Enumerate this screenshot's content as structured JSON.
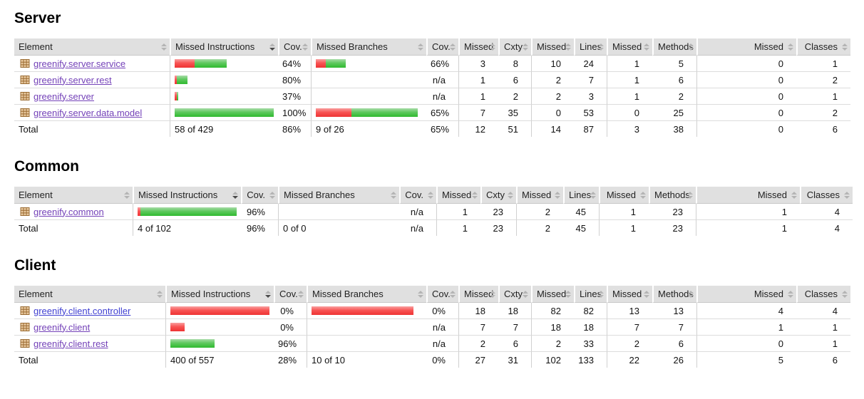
{
  "sort": {
    "column": "Missed Instructions",
    "direction": "desc"
  },
  "colors": {
    "bar_red": "#f85555",
    "bar_green": "#5fc85f",
    "header_bg": "#e0e0e0",
    "link_visited": "#7442b8",
    "link_new": "#3f3fd1",
    "package_icon_brown": "#9a6b32",
    "row_border": "#dcdcdc"
  },
  "table_columns": {
    "element": "Element",
    "missed_instructions": "Missed Instructions",
    "cov": "Cov.",
    "missed_branches": "Missed Branches",
    "missed": "Missed",
    "cxty": "Cxty",
    "lines": "Lines",
    "methods": "Methods",
    "classes": "Classes"
  },
  "sections": [
    {
      "title": "Server",
      "rows": [
        {
          "name": "greenify.server.service",
          "bar_instr_red": 28,
          "bar_instr_green": 45,
          "instr_cov": "64%",
          "bar_branch_red": 14,
          "bar_branch_green": 28,
          "branch_cov": "66%",
          "missed_cxty": "3",
          "cxty": "8",
          "missed_lines": "10",
          "lines": "24",
          "missed_methods": "1",
          "methods": "5",
          "missed_classes": "0",
          "classes": "1"
        },
        {
          "name": "greenify.server.rest",
          "bar_instr_red": 3,
          "bar_instr_green": 15,
          "instr_cov": "80%",
          "bar_branch_red": 0,
          "bar_branch_green": 0,
          "branch_cov": "n/a",
          "missed_cxty": "1",
          "cxty": "6",
          "missed_lines": "2",
          "lines": "7",
          "missed_methods": "1",
          "methods": "6",
          "missed_classes": "0",
          "classes": "2"
        },
        {
          "name": "greenify.server",
          "bar_instr_red": 3,
          "bar_instr_green": 2,
          "instr_cov": "37%",
          "bar_branch_red": 0,
          "bar_branch_green": 0,
          "branch_cov": "n/a",
          "missed_cxty": "1",
          "cxty": "2",
          "missed_lines": "2",
          "lines": "3",
          "missed_methods": "1",
          "methods": "2",
          "missed_classes": "0",
          "classes": "1"
        },
        {
          "name": "greenify.server.data.model",
          "bar_instr_red": 0,
          "bar_instr_green": 145,
          "instr_cov": "100%",
          "bar_branch_red": 50,
          "bar_branch_green": 93,
          "branch_cov": "65%",
          "missed_cxty": "7",
          "cxty": "35",
          "missed_lines": "0",
          "lines": "53",
          "missed_methods": "0",
          "methods": "25",
          "missed_classes": "0",
          "classes": "2"
        }
      ],
      "total": {
        "label": "Total",
        "instructions": "58 of 429",
        "instr_cov": "86%",
        "branches": "9 of 26",
        "branch_cov": "65%",
        "missed_cxty": "12",
        "cxty": "51",
        "missed_lines": "14",
        "lines": "87",
        "missed_methods": "3",
        "methods": "38",
        "missed_classes": "0",
        "classes": "6"
      }
    },
    {
      "title": "Common",
      "rows": [
        {
          "name": "greenify.common",
          "bar_instr_red": 4,
          "bar_instr_green": 141,
          "instr_cov": "96%",
          "bar_branch_red": 0,
          "bar_branch_green": 0,
          "branch_cov": "n/a",
          "missed_cxty": "1",
          "cxty": "23",
          "missed_lines": "2",
          "lines": "45",
          "missed_methods": "1",
          "methods": "23",
          "missed_classes": "1",
          "classes": "4"
        }
      ],
      "total": {
        "label": "Total",
        "instructions": "4 of 102",
        "instr_cov": "96%",
        "branches": "0 of 0",
        "branch_cov": "n/a",
        "missed_cxty": "1",
        "cxty": "23",
        "missed_lines": "2",
        "lines": "45",
        "missed_methods": "1",
        "methods": "23",
        "missed_classes": "1",
        "classes": "4"
      }
    },
    {
      "title": "Client",
      "rows": [
        {
          "name": "greenify.client.controller",
          "bar_instr_red": 140,
          "bar_instr_green": 0,
          "instr_cov": "0%",
          "bar_branch_red": 143,
          "bar_branch_green": 0,
          "branch_cov": "0%",
          "missed_cxty": "18",
          "cxty": "18",
          "missed_lines": "82",
          "lines": "82",
          "missed_methods": "13",
          "methods": "13",
          "missed_classes": "4",
          "classes": "4"
        },
        {
          "name": "greenify.client",
          "bar_instr_red": 20,
          "bar_instr_green": 0,
          "instr_cov": "0%",
          "bar_branch_red": 0,
          "bar_branch_green": 0,
          "branch_cov": "n/a",
          "missed_cxty": "7",
          "cxty": "7",
          "missed_lines": "18",
          "lines": "18",
          "missed_methods": "7",
          "methods": "7",
          "missed_classes": "1",
          "classes": "1"
        },
        {
          "name": "greenify.client.rest",
          "bar_instr_red": 0,
          "bar_instr_green": 62,
          "instr_cov": "96%",
          "bar_branch_red": 0,
          "bar_branch_green": 0,
          "branch_cov": "n/a",
          "missed_cxty": "2",
          "cxty": "6",
          "missed_lines": "2",
          "lines": "33",
          "missed_methods": "2",
          "methods": "6",
          "missed_classes": "0",
          "classes": "1"
        }
      ],
      "total": {
        "label": "Total",
        "instructions": "400 of 557",
        "instr_cov": "28%",
        "branches": "10 of 10",
        "branch_cov": "0%",
        "missed_cxty": "27",
        "cxty": "31",
        "missed_lines": "102",
        "lines": "133",
        "missed_methods": "22",
        "methods": "26",
        "missed_classes": "5",
        "classes": "6"
      }
    }
  ]
}
